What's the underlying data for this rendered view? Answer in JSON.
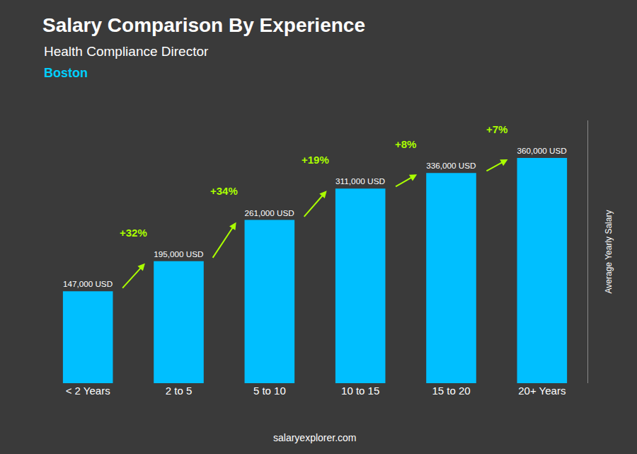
{
  "chart_data": {
    "type": "bar",
    "title": "Salary Comparison By Experience",
    "subtitle": "Health Compliance Director",
    "categories": [
      "< 2 Years",
      "2 to 5",
      "5 to 10",
      "10 to 15",
      "15 to 20",
      "20+ Years"
    ],
    "values": [
      147000,
      195000,
      261000,
      311000,
      336000,
      360000
    ],
    "value_labels": [
      "147,000 USD",
      "195,000 USD",
      "261,000 USD",
      "311,000 USD",
      "336,000 USD",
      "360,000 USD"
    ],
    "data_labels": true,
    "color": "#00BFFF",
    "ylabel": "Average Yearly Salary",
    "ylim": [
      0,
      420000
    ],
    "tick_labels": "x",
    "grid": false,
    "annotations": [
      {
        "text": "Boston",
        "color": "#00CFFF"
      },
      {
        "text": "+32%",
        "from": "< 2 Years",
        "to": "2 to 5",
        "color": "#aaff00"
      },
      {
        "text": "+34%",
        "from": "2 to 5",
        "to": "5 to 10",
        "color": "#aaff00"
      },
      {
        "text": "+19%",
        "from": "5 to 10",
        "to": "10 to 15",
        "color": "#aaff00"
      },
      {
        "text": "+8%",
        "from": "10 to 15",
        "to": "15 to 20",
        "color": "#aaff00"
      },
      {
        "text": "+7%",
        "from": "15 to 20",
        "to": "20+ Years",
        "color": "#aaff00"
      },
      {
        "text": "salaryexplorer.com"
      }
    ]
  }
}
